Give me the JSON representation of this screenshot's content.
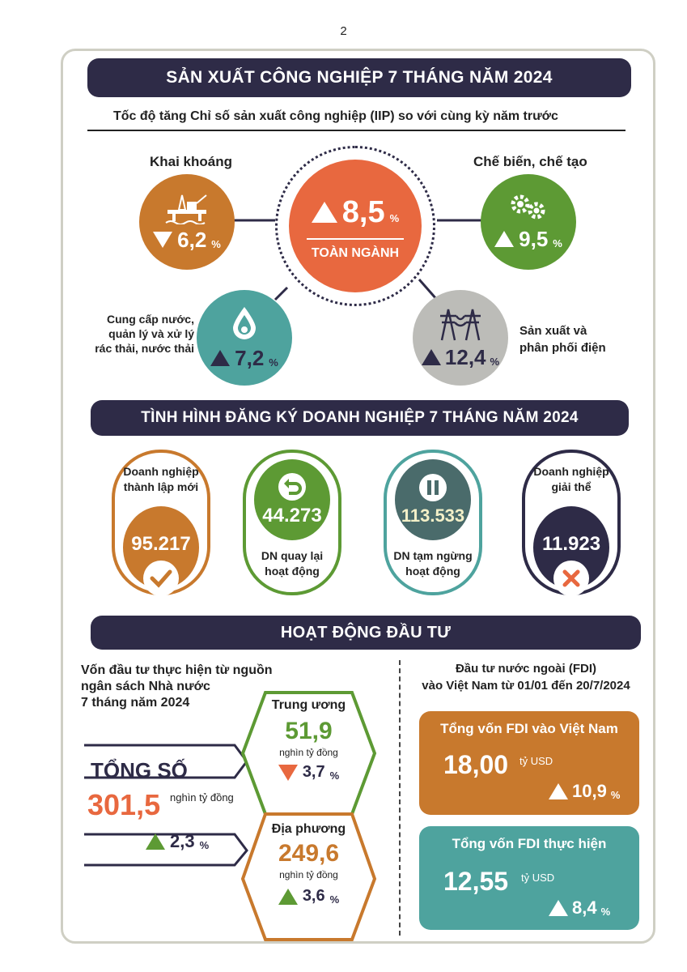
{
  "page_number": "2",
  "section1": {
    "title": "SẢN XUẤT CÔNG NGHIỆP 7 THÁNG NĂM 2024",
    "subtitle": "Tốc độ tăng Chỉ số sản xuất công nghiệp (IIP) so với cùng kỳ năm trước",
    "center": {
      "value": "8,5",
      "unit": "%",
      "label": "TOÀN NGÀNH",
      "direction": "up"
    },
    "mining": {
      "label": "Khai khoáng",
      "value": "6,2",
      "unit": "%",
      "direction": "down",
      "icon": "oil-rig-icon"
    },
    "manufacturing": {
      "label": "Chế biến, chế tạo",
      "value": "9,5",
      "unit": "%",
      "direction": "up",
      "icon": "gears-icon"
    },
    "water": {
      "label_lines": [
        "Cung cấp nước,",
        "quản lý và xử lý",
        "rác thải, nước thải"
      ],
      "value": "7,2",
      "unit": "%",
      "direction": "up",
      "icon": "water-drop-icon"
    },
    "electricity": {
      "label_lines": [
        "Sản xuất và",
        "phân phối điện"
      ],
      "value": "12,4",
      "unit": "%",
      "direction": "up",
      "icon": "power-tower-icon"
    }
  },
  "section2": {
    "title": "TÌNH HÌNH ĐĂNG KÝ DOANH NGHIỆP 7 THÁNG NĂM 2024",
    "cards": [
      {
        "caption_lines": [
          "Doanh nghiệp",
          "thành lập mới"
        ],
        "value": "95.217",
        "icon": "check-icon"
      },
      {
        "caption_lines": [
          "DN quay lại",
          "hoạt động"
        ],
        "value": "44.273",
        "icon": "return-icon"
      },
      {
        "caption_lines": [
          "DN tạm ngừng",
          "hoạt động"
        ],
        "value": "113.533",
        "icon": "pause-icon"
      },
      {
        "caption_lines": [
          "Doanh nghiệp",
          "giải thể"
        ],
        "value": "11.923",
        "icon": "cross-icon"
      }
    ]
  },
  "section3": {
    "title": "HOẠT ĐỘNG ĐẦU TƯ",
    "budget": {
      "heading_lines": [
        "Vốn đầu tư thực hiện từ nguồn",
        "ngân sách Nhà nước",
        "7 tháng năm 2024"
      ],
      "total_label": "TỔNG SỐ",
      "total_value": "301,5",
      "total_unit": "nghìn tỷ đồng",
      "total_change": "2,3",
      "central": {
        "label": "Trung ương",
        "value": "51,9",
        "unit": "nghìn tỷ đồng",
        "change": "3,7",
        "direction": "down"
      },
      "local": {
        "label": "Địa phương",
        "value": "249,6",
        "unit": "nghìn tỷ đồng",
        "change": "3,6",
        "direction": "up"
      }
    },
    "fdi": {
      "heading_lines": [
        "Đầu tư nước ngoài (FDI)",
        "vào Việt Nam từ 01/01 đến 20/7/2024"
      ],
      "registered": {
        "title": "Tổng vốn FDI vào Việt Nam",
        "value": "18,00",
        "unit": "tỷ USD",
        "change": "10,9",
        "direction": "up"
      },
      "disbursed": {
        "title": "Tổng vốn FDI thực hiện",
        "value": "12,55",
        "unit": "tỷ USD",
        "change": "8,4",
        "direction": "up"
      }
    },
    "percent_sign": "%"
  },
  "colors": {
    "navy": "#2e2b47",
    "orange": "#c8792d",
    "red": "#e8683f",
    "green": "#5d9a34",
    "teal": "#4ea39e",
    "gray": "#bcbcb8",
    "dark_teal": "#4a6b6b"
  }
}
